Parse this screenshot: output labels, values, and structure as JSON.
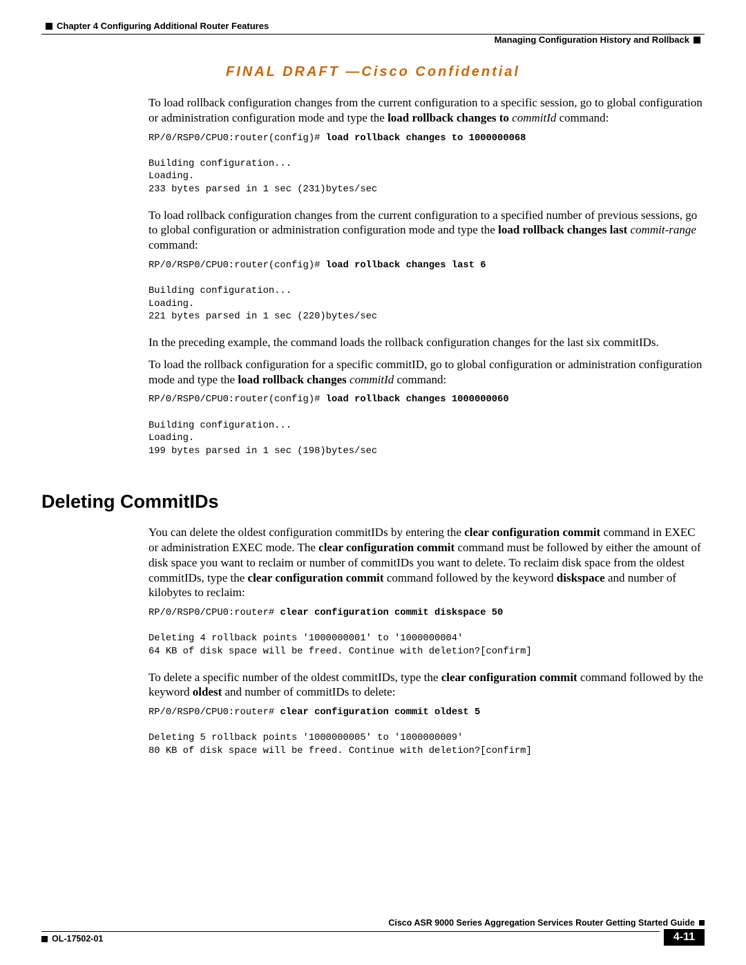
{
  "header": {
    "chapter": "Chapter 4      Configuring Additional Router Features",
    "section": "Managing Configuration History and Rollback"
  },
  "banner": "FINAL DRAFT —Cisco Confidential",
  "p1_a": "To load rollback configuration changes from the current configuration to a specific session, go to global configuration or administration configuration mode and type the ",
  "p1_b": "load rollback changes to",
  "p1_c": " commitId",
  "p1_d": " command:",
  "code1_prompt": "RP/0/RSP0/CPU0:router(config)# ",
  "code1_cmd": "load rollback changes to 1000000068",
  "code1_out": "\nBuilding configuration...\nLoading.\n233 bytes parsed in 1 sec (231)bytes/sec",
  "p2_a": "To load rollback configuration changes from the current configuration to a specified number of previous sessions, go to global configuration or administration configuration mode and type the ",
  "p2_b": "load rollback changes last",
  "p2_c": " commit-range",
  "p2_d": " command:",
  "code2_prompt": "RP/0/RSP0/CPU0:router(config)# ",
  "code2_cmd": "load rollback changes last 6",
  "code2_out": "\nBuilding configuration...\nLoading.\n221 bytes parsed in 1 sec (220)bytes/sec",
  "p3": "In the preceding example, the command loads the rollback configuration changes for the last six commitIDs.",
  "p4_a": "To load the rollback configuration for a specific commitID, go to global configuration or administration configuration mode and type the ",
  "p4_b": "load rollback changes",
  "p4_c": " commitId",
  "p4_d": " command:",
  "code3_prompt": "RP/0/RSP0/CPU0:router(config)# ",
  "code3_cmd": "load rollback changes 1000000060",
  "code3_out": "\nBuilding configuration...\nLoading.\n199 bytes parsed in 1 sec (198)bytes/sec",
  "h2": "Deleting CommitIDs",
  "p5_a": "You can delete the oldest configuration commitIDs by entering the ",
  "p5_b": "clear configuration commit",
  "p5_c": " command in EXEC or administration EXEC mode. The ",
  "p5_d": "clear configuration commit",
  "p5_e": " command must be followed by either the amount of disk space you want to reclaim or number of commitIDs you want to delete. To reclaim disk space from the oldest commitIDs, type the ",
  "p5_f": "clear configuration commit",
  "p5_g": " command followed by the keyword ",
  "p5_h": "diskspace",
  "p5_i": " and number of kilobytes to reclaim:",
  "code4_prompt": "RP/0/RSP0/CPU0:router# ",
  "code4_cmd": "clear configuration commit diskspace 50",
  "code4_out": "\nDeleting 4 rollback points '1000000001' to '1000000004'\n64 KB of disk space will be freed. Continue with deletion?[confirm]",
  "p6_a": "To delete a specific number of the oldest commitIDs, type the ",
  "p6_b": "clear configuration commit",
  "p6_c": " command followed by the keyword ",
  "p6_d": "oldest",
  "p6_e": " and number of commitIDs to delete:",
  "code5_prompt": "RP/0/RSP0/CPU0:router# ",
  "code5_cmd": "clear configuration commit oldest 5",
  "code5_out": "\nDeleting 5 rollback points '1000000005' to '1000000009'\n80 KB of disk space will be freed. Continue with deletion?[confirm]",
  "footer": {
    "title": "Cisco ASR 9000 Series Aggregation Services Router Getting Started Guide",
    "docid": "OL-17502-01",
    "pagenum": "4-11"
  }
}
